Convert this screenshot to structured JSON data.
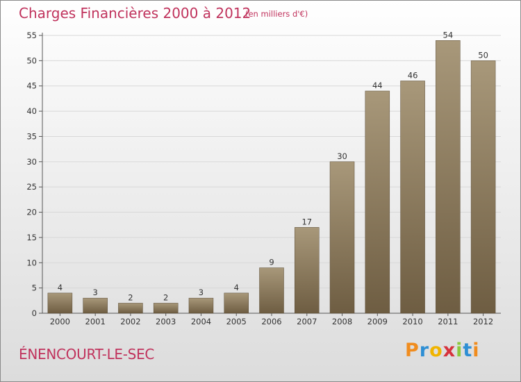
{
  "colors": {
    "title": "#c0325c",
    "bar_top": "#a8987a",
    "bar_bottom": "#6e5d42",
    "axis": "#555555",
    "grid": "#d8d8d8"
  },
  "chart_data": {
    "type": "bar",
    "title": "Charges Financières 2000 à 2012",
    "subtitle": "(en milliers d'€)",
    "categories": [
      "2000",
      "2001",
      "2002",
      "2003",
      "2004",
      "2005",
      "2006",
      "2007",
      "2008",
      "2009",
      "2010",
      "2011",
      "2012"
    ],
    "values": [
      4,
      3,
      2,
      2,
      3,
      4,
      9,
      17,
      30,
      44,
      46,
      54,
      50
    ],
    "ylim": [
      0,
      55
    ],
    "yticks": [
      0,
      5,
      10,
      15,
      20,
      25,
      30,
      35,
      40,
      45,
      50,
      55
    ],
    "xlabel": "",
    "ylabel": "",
    "grid": true
  },
  "footer": {
    "commune": "ÉNENCOURT-LE-SEC",
    "logo_letters": [
      {
        "ch": "P",
        "color": "#f08c1e"
      },
      {
        "ch": "r",
        "color": "#2e8fd4"
      },
      {
        "ch": "o",
        "color": "#f0b400"
      },
      {
        "ch": "x",
        "color": "#d6323c"
      },
      {
        "ch": "i",
        "color": "#8cc83c"
      },
      {
        "ch": "t",
        "color": "#2e8fd4"
      },
      {
        "ch": "i",
        "color": "#f08c1e"
      }
    ]
  }
}
